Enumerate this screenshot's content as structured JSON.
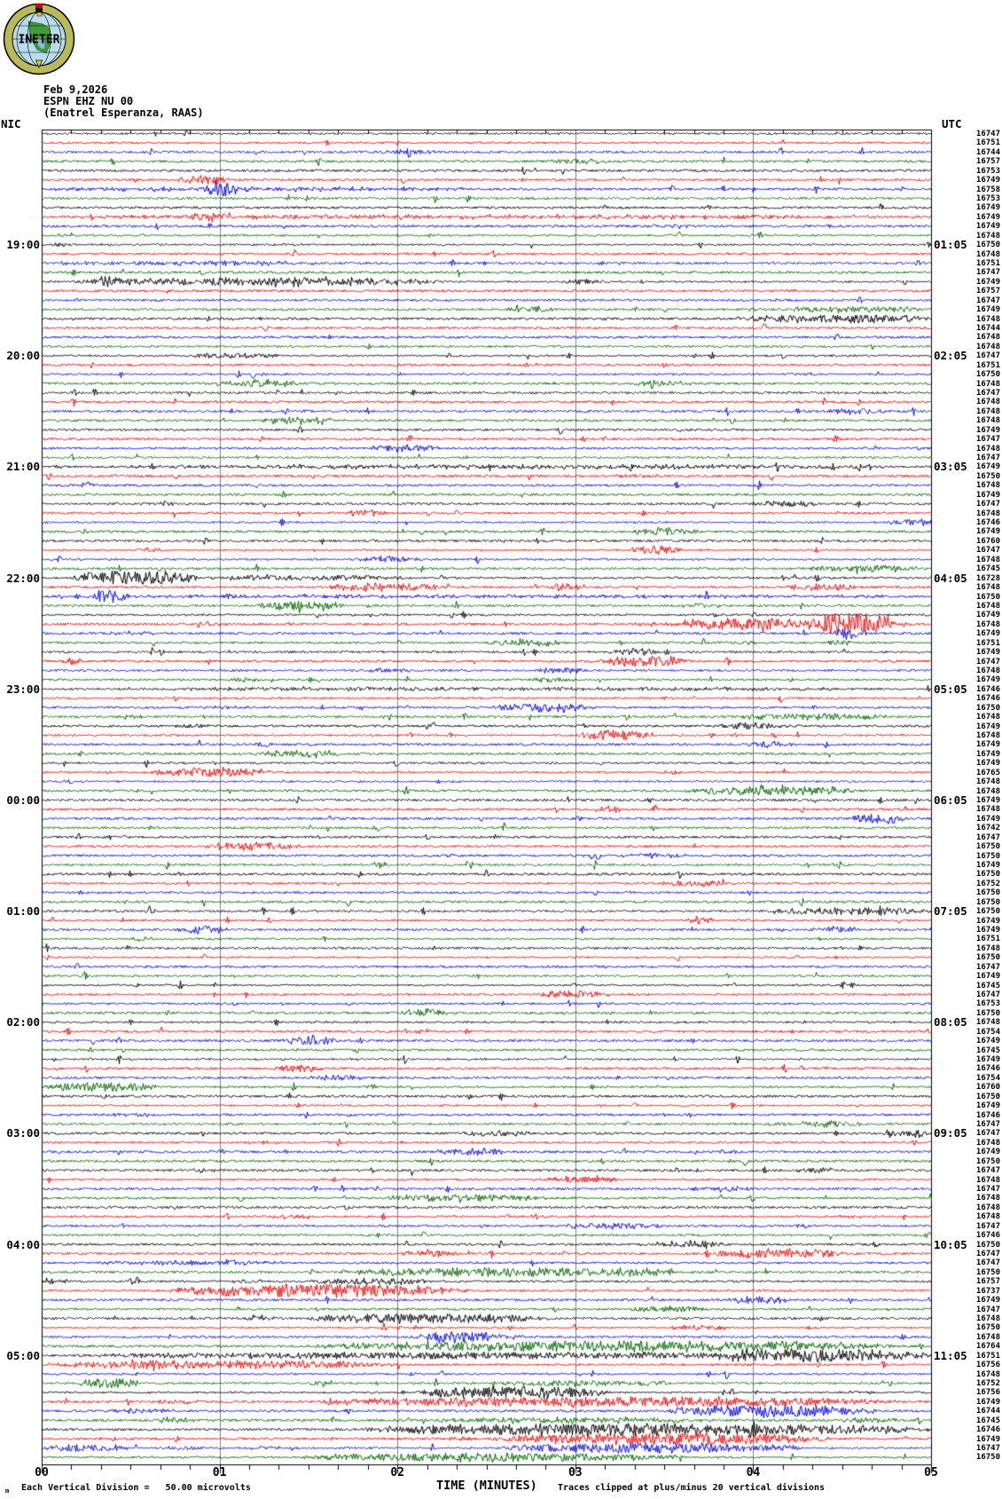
{
  "header": {
    "logo_text": "INETER",
    "date": "Feb 9,2026",
    "station": "ESPN EHZ NU 00",
    "location": "(Enatrel Esperanza, RAAS)",
    "left_tz": "NIC",
    "right_tz": "UTC"
  },
  "footer": {
    "marker": "m",
    "scale_note": "Each Vertical Division =   50.00 microvolts",
    "xlabel": "TIME (MINUTES)",
    "clip_note": "Traces clipped at plus/minus 20 vertical divisions"
  },
  "colors": {
    "trace_cycle": [
      "#000000",
      "#ff0000",
      "#0000ff",
      "#006600"
    ],
    "grid": "#808080",
    "border": "#000000",
    "background": "#ffffff"
  },
  "chart_data": {
    "type": "line",
    "subtype": "helicorder seismogram, one trace row per 5 minutes, 4-color cycle",
    "title": "ESPN EHZ NU 00 (Enatrel Esperanza, RAAS) Feb 9,2026",
    "xlabel": "TIME (MINUTES)",
    "x_range_minutes": [
      0,
      5
    ],
    "x_ticks": [
      "00",
      "01",
      "02",
      "03",
      "04",
      "05"
    ],
    "minor_ticks_per_minute": 5,
    "rows": 144,
    "row_duration_minutes": 5,
    "left_time_labels": [
      "19:00",
      "20:00",
      "21:00",
      "22:00",
      "23:00",
      "00:00",
      "01:00",
      "02:00",
      "03:00",
      "04:00",
      "05:00"
    ],
    "right_time_labels": [
      "01:05",
      "02:05",
      "03:05",
      "04:05",
      "05:05",
      "06:05",
      "07:05",
      "08:05",
      "09:05",
      "10:05",
      "11:05"
    ],
    "hour_label_first_row": 12,
    "hour_label_row_step": 12,
    "trace_mean_counts": [
      16747,
      16751,
      16744,
      16757,
      16753,
      16749,
      16758,
      16753,
      16749,
      16749,
      16749,
      16748,
      16750,
      16748,
      16751,
      16747,
      16749,
      16757,
      16747,
      16749,
      16748,
      16744,
      16748,
      16748,
      16747,
      16751,
      16750,
      16748,
      16747,
      16748,
      16748,
      16748,
      16749,
      16747,
      16748,
      16747,
      16749,
      16750,
      16748,
      16749,
      16747,
      16748,
      16746,
      16749,
      16760,
      16747,
      16748,
      16745,
      16728,
      16748,
      16750,
      16748,
      16749,
      16748,
      16749,
      16751,
      16749,
      16747,
      16748,
      16749,
      16746,
      16746,
      16750,
      16748,
      16749,
      16748,
      16749,
      16749,
      16749,
      16765,
      16748,
      16748,
      16749,
      16748,
      16749,
      16742,
      16747,
      16750,
      16750,
      16749,
      16750,
      16752,
      16750,
      16750,
      16750,
      16749,
      16749,
      16751,
      16748,
      16750,
      16747,
      16749,
      16745,
      16747,
      16753,
      16750,
      16748,
      16754,
      16749,
      16745,
      16749,
      16746,
      16754,
      16760,
      16750,
      16749,
      16746,
      16747,
      16747,
      16748,
      16749,
      16750,
      16747,
      16748,
      16747,
      16748,
      16748,
      16748,
      16747,
      16746,
      16750,
      16747,
      16747,
      16750,
      16757,
      16737,
      16749,
      16747,
      16748,
      16750,
      16748,
      16764,
      16751,
      16756,
      16748,
      16752,
      16756,
      16749,
      16744,
      16745,
      16746,
      16749,
      16747,
      16750
    ],
    "events_note": "approximate visible bursts: [row_index, start_minute, end_minute, amplitude_px]",
    "events": [
      [
        5,
        0.75,
        1.05,
        5
      ],
      [
        6,
        0.9,
        1.1,
        9
      ],
      [
        6,
        0,
        2.4,
        1.8
      ],
      [
        9,
        0,
        5,
        1.8
      ],
      [
        9,
        0.8,
        1.05,
        4.5
      ],
      [
        14,
        0,
        1.7,
        2.2
      ],
      [
        16,
        0.15,
        2.3,
        4.5
      ],
      [
        16,
        0.3,
        0.45,
        8
      ],
      [
        19,
        4.15,
        5,
        3
      ],
      [
        20,
        3.9,
        5,
        4.5
      ],
      [
        24,
        0.8,
        1.35,
        3
      ],
      [
        27,
        1.0,
        1.45,
        4
      ],
      [
        31,
        1.2,
        1.6,
        4
      ],
      [
        34,
        1.8,
        2.25,
        4
      ],
      [
        36,
        0,
        5,
        2
      ],
      [
        40,
        3.95,
        4.4,
        3
      ],
      [
        43,
        3.3,
        3.7,
        4
      ],
      [
        45,
        3.3,
        3.6,
        5
      ],
      [
        47,
        4.3,
        4.95,
        3.5
      ],
      [
        48,
        0.15,
        0.9,
        8
      ],
      [
        48,
        0.9,
        2.1,
        3
      ],
      [
        49,
        1.6,
        2.3,
        4.5
      ],
      [
        49,
        4.15,
        4.6,
        4
      ],
      [
        50,
        0.28,
        0.5,
        7
      ],
      [
        50,
        0,
        5,
        1.5
      ],
      [
        51,
        1.2,
        1.7,
        5
      ],
      [
        53,
        3.3,
        5,
        3.5
      ],
      [
        53,
        3.6,
        4.3,
        6
      ],
      [
        53,
        4.3,
        4.8,
        13
      ],
      [
        54,
        4.45,
        4.6,
        7
      ],
      [
        55,
        2.5,
        2.95,
        4
      ],
      [
        55,
        4.4,
        4.6,
        3
      ],
      [
        57,
        3.2,
        3.65,
        6
      ],
      [
        60,
        0,
        5,
        1.8
      ],
      [
        62,
        2.5,
        3.05,
        5
      ],
      [
        63,
        3.9,
        4.75,
        3.5
      ],
      [
        65,
        3.0,
        3.45,
        5.5
      ],
      [
        67,
        1.2,
        1.75,
        3.5
      ],
      [
        69,
        0.6,
        1.3,
        5.5
      ],
      [
        71,
        3.6,
        4.6,
        5
      ],
      [
        74,
        4.55,
        4.85,
        6
      ],
      [
        77,
        0.9,
        1.45,
        4.5
      ],
      [
        81,
        3.6,
        3.9,
        3.5
      ],
      [
        84,
        4.05,
        5,
        4
      ],
      [
        86,
        0.75,
        1.05,
        4
      ],
      [
        93,
        2.75,
        3.2,
        4
      ],
      [
        98,
        1.35,
        1.65,
        5
      ],
      [
        101,
        1.3,
        1.6,
        3.5
      ],
      [
        103,
        0,
        0.65,
        5.5
      ],
      [
        107,
        4.25,
        4.6,
        3.5
      ],
      [
        110,
        2.2,
        2.65,
        3.5
      ],
      [
        113,
        2.8,
        3.3,
        3.5
      ],
      [
        115,
        1.9,
        2.85,
        4
      ],
      [
        118,
        2.9,
        3.5,
        3.5
      ],
      [
        120,
        3.5,
        3.85,
        3.5
      ],
      [
        121,
        3.75,
        4.5,
        5
      ],
      [
        122,
        0.2,
        1.4,
        2.5
      ],
      [
        123,
        1.7,
        3.6,
        5
      ],
      [
        124,
        1.5,
        2.2,
        4
      ],
      [
        125,
        0.7,
        2.4,
        7.5
      ],
      [
        126,
        3.85,
        4.2,
        4
      ],
      [
        127,
        3.3,
        3.75,
        4
      ],
      [
        128,
        1.5,
        2.85,
        5
      ],
      [
        130,
        2.1,
        2.55,
        6
      ],
      [
        131,
        1.5,
        4.85,
        5.5
      ],
      [
        132,
        0,
        5,
        3.5
      ],
      [
        132,
        3.7,
        5,
        6.5
      ],
      [
        133,
        0,
        2,
        4.5
      ],
      [
        135,
        0.2,
        0.55,
        6
      ],
      [
        135,
        2.5,
        3.6,
        3
      ],
      [
        136,
        2.1,
        3.2,
        7
      ],
      [
        137,
        1.5,
        4.8,
        5.5
      ],
      [
        138,
        3.5,
        4.7,
        6.5
      ],
      [
        139,
        2.2,
        3.8,
        2.5
      ],
      [
        140,
        1.8,
        5,
        6.5
      ],
      [
        141,
        2.5,
        4.45,
        6.5
      ],
      [
        142,
        0,
        0.5,
        4
      ],
      [
        142,
        2.55,
        4.3,
        5.5
      ],
      [
        143,
        1.4,
        3.6,
        5
      ]
    ]
  }
}
